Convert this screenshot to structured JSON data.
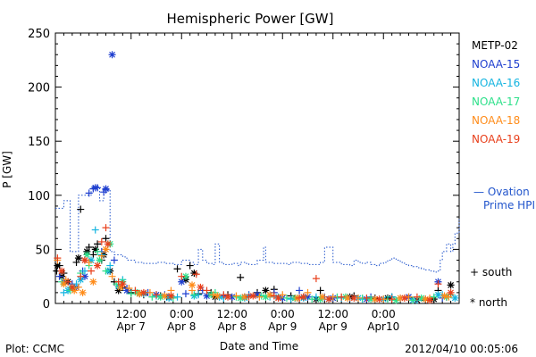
{
  "chart_data": {
    "type": "scatter",
    "title": "Hemispheric Power [GW]",
    "ylabel": "P [GW]",
    "xlabel": "Date and Time",
    "ylim": [
      0,
      250
    ],
    "yticks": [
      0,
      50,
      100,
      150,
      200,
      250
    ],
    "xlim": [
      0,
      96
    ],
    "xticks": [
      {
        "x": 18,
        "time": "12:00",
        "date": "Apr 7"
      },
      {
        "x": 30,
        "time": "0:00",
        "date": "Apr 8"
      },
      {
        "x": 42,
        "time": "12:00",
        "date": "Apr 8"
      },
      {
        "x": 54,
        "time": "0:00",
        "date": "Apr 9"
      },
      {
        "x": 66,
        "time": "12:00",
        "date": "Apr 9"
      },
      {
        "x": 78,
        "time": "0:00",
        "date": "Apr10"
      }
    ],
    "x_units": "hours after 2012-04-06 18:00 UT",
    "grid": false,
    "legend_position": "right",
    "satellites": [
      {
        "name": "METP-02",
        "color": "#000000"
      },
      {
        "name": "NOAA-15",
        "color": "#1f3fcf"
      },
      {
        "name": "NOAA-16",
        "color": "#14b4e0"
      },
      {
        "name": "NOAA-17",
        "color": "#2de08a"
      },
      {
        "name": "NOAA-18",
        "color": "#ff8c1a"
      },
      {
        "name": "NOAA-19",
        "color": "#e8401c"
      }
    ],
    "ovation": {
      "label_line1": "— Ovation",
      "label_line2": "Prime HPI",
      "color": "#2255cc",
      "x": [
        0,
        1.5,
        2,
        3,
        3.5,
        5,
        5.5,
        8,
        8.5,
        10,
        10.5,
        11,
        11.5,
        12,
        13,
        14,
        16,
        17,
        19,
        21,
        24,
        26,
        28,
        30,
        32,
        33,
        34,
        35,
        36,
        37.5,
        38,
        39,
        40,
        42,
        43.5,
        44,
        45,
        46,
        47,
        48,
        49.5,
        50,
        52,
        55,
        56,
        58,
        60,
        63,
        64,
        66,
        68,
        70,
        71,
        72,
        73,
        74,
        75,
        76,
        77,
        78,
        79,
        80,
        81,
        82,
        83,
        84,
        85,
        86,
        87,
        88,
        89,
        90,
        91,
        91.5,
        92,
        93,
        94,
        94.5,
        95,
        96
      ],
      "y": [
        88,
        88,
        95,
        95,
        48,
        48,
        100,
        100,
        108,
        108,
        95,
        95,
        105,
        105,
        48,
        45,
        43,
        40,
        38,
        37,
        38,
        37,
        36,
        40,
        38,
        36,
        50,
        40,
        37,
        36,
        55,
        38,
        36,
        37,
        35,
        38,
        37,
        36,
        36,
        40,
        52,
        38,
        37,
        36,
        38,
        37,
        36,
        38,
        52,
        38,
        36,
        35,
        40,
        38,
        37,
        38,
        36,
        35,
        37,
        38,
        40,
        42,
        40,
        38,
        36,
        35,
        34,
        33,
        32,
        31,
        30,
        29,
        30,
        40,
        48,
        55,
        48,
        55,
        65,
        78
      ]
    },
    "series": [
      {
        "name": "METP-02",
        "hemisphere": "south",
        "x": [
          0.3,
          1,
          2,
          4,
          5,
          6,
          7,
          8,
          9,
          10,
          11,
          12,
          14,
          16,
          18,
          21,
          25,
          29,
          32,
          34,
          37,
          41,
          44,
          48,
          52,
          56,
          59,
          63,
          67,
          71,
          76,
          80,
          84,
          88,
          91,
          93
        ],
        "y": [
          30,
          35,
          28,
          15,
          38,
          87,
          40,
          52,
          45,
          55,
          40,
          60,
          20,
          15,
          10,
          8,
          7,
          32,
          35,
          9,
          10,
          8,
          24,
          10,
          13,
          7,
          6,
          12,
          5,
          7,
          5,
          6,
          5,
          3,
          12,
          6
        ]
      },
      {
        "name": "METP-02",
        "hemisphere": "north",
        "x": [
          0.5,
          1.5,
          3,
          5.5,
          7.5,
          9.5,
          11.5,
          13,
          15,
          20,
          27,
          31,
          33,
          38,
          45,
          50,
          57,
          62,
          70,
          79,
          86,
          90,
          94
        ],
        "y": [
          35,
          25,
          20,
          42,
          48,
          50,
          45,
          30,
          12,
          9,
          6,
          22,
          28,
          6,
          6,
          12,
          5,
          4,
          6,
          5,
          3,
          4,
          17
        ]
      },
      {
        "name": "NOAA-15",
        "hemisphere": "south",
        "x": [
          1,
          4,
          6.5,
          8,
          9,
          10,
          11,
          11.5,
          12,
          14,
          17,
          22,
          26,
          31,
          35,
          40,
          46,
          52,
          58,
          64,
          70,
          75,
          82,
          88,
          92
        ],
        "y": [
          25,
          18,
          30,
          102,
          106,
          107,
          48,
          103,
          105,
          40,
          14,
          10,
          8,
          9,
          12,
          7,
          8,
          10,
          12,
          6,
          5,
          6,
          5,
          4,
          5
        ]
      },
      {
        "name": "NOAA-15",
        "hemisphere": "north",
        "x": [
          2,
          5,
          7,
          9.5,
          12,
          13.5,
          17,
          24,
          30,
          36,
          42,
          48,
          54,
          60,
          66,
          74,
          84,
          91
        ],
        "y": [
          20,
          15,
          25,
          107,
          106,
          230,
          12,
          8,
          20,
          7,
          6,
          8,
          5,
          6,
          5,
          4,
          6,
          20
        ]
      },
      {
        "name": "NOAA-16",
        "hemisphere": "south",
        "x": [
          2,
          3.5,
          5,
          7,
          9.5,
          11,
          13,
          16,
          19,
          24,
          29,
          34,
          40,
          46,
          51,
          56,
          62,
          68,
          73,
          80,
          86,
          92
        ],
        "y": [
          10,
          15,
          18,
          30,
          68,
          45,
          35,
          22,
          12,
          7,
          6,
          8,
          5,
          7,
          6,
          4,
          6,
          5,
          4,
          6,
          3,
          8
        ]
      },
      {
        "name": "NOAA-16",
        "hemisphere": "north",
        "x": [
          3,
          6,
          8.5,
          12.5,
          15,
          21,
          27,
          33,
          39,
          45,
          53,
          59,
          65,
          72,
          78,
          85,
          91,
          95
        ],
        "y": [
          12,
          22,
          40,
          30,
          16,
          9,
          5,
          7,
          6,
          5,
          6,
          5,
          4,
          5,
          4,
          3,
          8,
          5
        ]
      },
      {
        "name": "NOAA-17",
        "hemisphere": "south",
        "x": [
          1.5,
          3.5,
          6,
          8,
          10,
          12,
          14.5,
          18,
          23,
          28,
          33,
          38,
          43,
          49,
          55,
          61,
          67,
          73,
          79,
          85,
          90,
          94
        ],
        "y": [
          20,
          12,
          28,
          35,
          48,
          30,
          18,
          9,
          6,
          5,
          8,
          10,
          6,
          7,
          5,
          4,
          6,
          5,
          4,
          3,
          6,
          8
        ]
      },
      {
        "name": "NOAA-17",
        "hemisphere": "north",
        "x": [
          4,
          7.5,
          10.5,
          13,
          16,
          19.5,
          25,
          31,
          37,
          44,
          50,
          57,
          63,
          69,
          75,
          81,
          87,
          93
        ],
        "y": [
          14,
          45,
          40,
          55,
          20,
          10,
          6,
          25,
          8,
          5,
          6,
          5,
          4,
          6,
          4,
          3,
          5,
          6
        ]
      },
      {
        "name": "NOAA-18",
        "hemisphere": "south",
        "x": [
          0.5,
          2.5,
          5.5,
          8,
          11,
          13.5,
          17.5,
          22.5,
          27.5,
          32.5,
          37.5,
          43,
          48.5,
          54,
          60,
          66,
          72,
          78,
          84,
          89,
          93.5
        ],
        "y": [
          40,
          22,
          15,
          38,
          44,
          25,
          14,
          10,
          12,
          12,
          8,
          7,
          6,
          8,
          10,
          6,
          5,
          4,
          6,
          5,
          6
        ]
      },
      {
        "name": "NOAA-18",
        "hemisphere": "north",
        "x": [
          2,
          4.5,
          6.5,
          9,
          12,
          15.5,
          20,
          26,
          32.5,
          38.5,
          45,
          51,
          57.5,
          63.5,
          69.5,
          76,
          82,
          88,
          92.5
        ],
        "y": [
          18,
          12,
          10,
          20,
          50,
          15,
          9,
          7,
          17,
          7,
          6,
          8,
          5,
          6,
          5,
          4,
          5,
          4,
          7
        ]
      },
      {
        "name": "NOAA-19",
        "hemisphere": "south",
        "x": [
          0.5,
          3,
          6,
          8.5,
          11,
          12,
          15,
          19,
          24,
          30,
          33.5,
          36,
          40,
          46,
          52,
          58,
          62,
          68,
          74,
          80,
          86,
          91
        ],
        "y": [
          42,
          20,
          25,
          30,
          57,
          70,
          20,
          12,
          8,
          25,
          27,
          12,
          8,
          6,
          7,
          5,
          23,
          6,
          5,
          4,
          6,
          18
        ]
      },
      {
        "name": "NOAA-19",
        "hemisphere": "north",
        "x": [
          1.5,
          4,
          7,
          10,
          12.5,
          16,
          21,
          27.5,
          34.5,
          41,
          47,
          53,
          59,
          65,
          71,
          77,
          83,
          89,
          94
        ],
        "y": [
          30,
          15,
          40,
          35,
          55,
          18,
          10,
          7,
          15,
          6,
          7,
          5,
          6,
          4,
          5,
          4,
          5,
          3,
          10
        ]
      }
    ]
  },
  "legend_marks": {
    "south": "+ south",
    "north": "* north"
  },
  "footer": {
    "left": "Plot: CCMC",
    "right": "2012/04/10 00:05:06"
  }
}
